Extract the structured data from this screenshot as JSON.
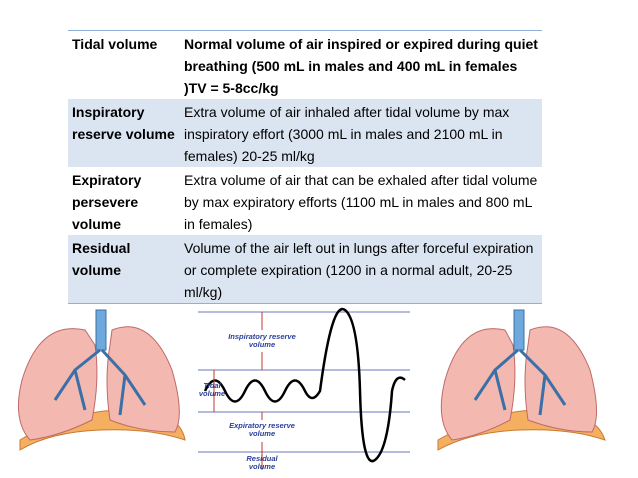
{
  "table": {
    "rows": [
      [
        "Tidal volume",
        "Normal volume of air inspired or expired during quiet breathing (500 mL in males and 400 mL in females )TV = 5-8cc/kg"
      ],
      [
        "Inspiratory reserve volume",
        "Extra volume of air inhaled after tidal volume by max inspiratory effort (3000 mL in males and 2100 mL in females) 20-25 ml/kg"
      ],
      [
        "Expiratory persevere volume",
        "Extra volume of air that can be exhaled after tidal volume by max expiratory efforts (1100 mL in males and 800 mL in females)"
      ],
      [
        "Residual volume",
        "Volume of the air left out in lungs after forceful expiration or complete expiration (1200 in a normal adult, 20-25 ml/kg)"
      ]
    ]
  },
  "diagram": {
    "labels": [
      "Inspiratory reserve volume",
      "Tidal volume",
      "Expiratory reserve volume",
      "Residual volume"
    ]
  }
}
